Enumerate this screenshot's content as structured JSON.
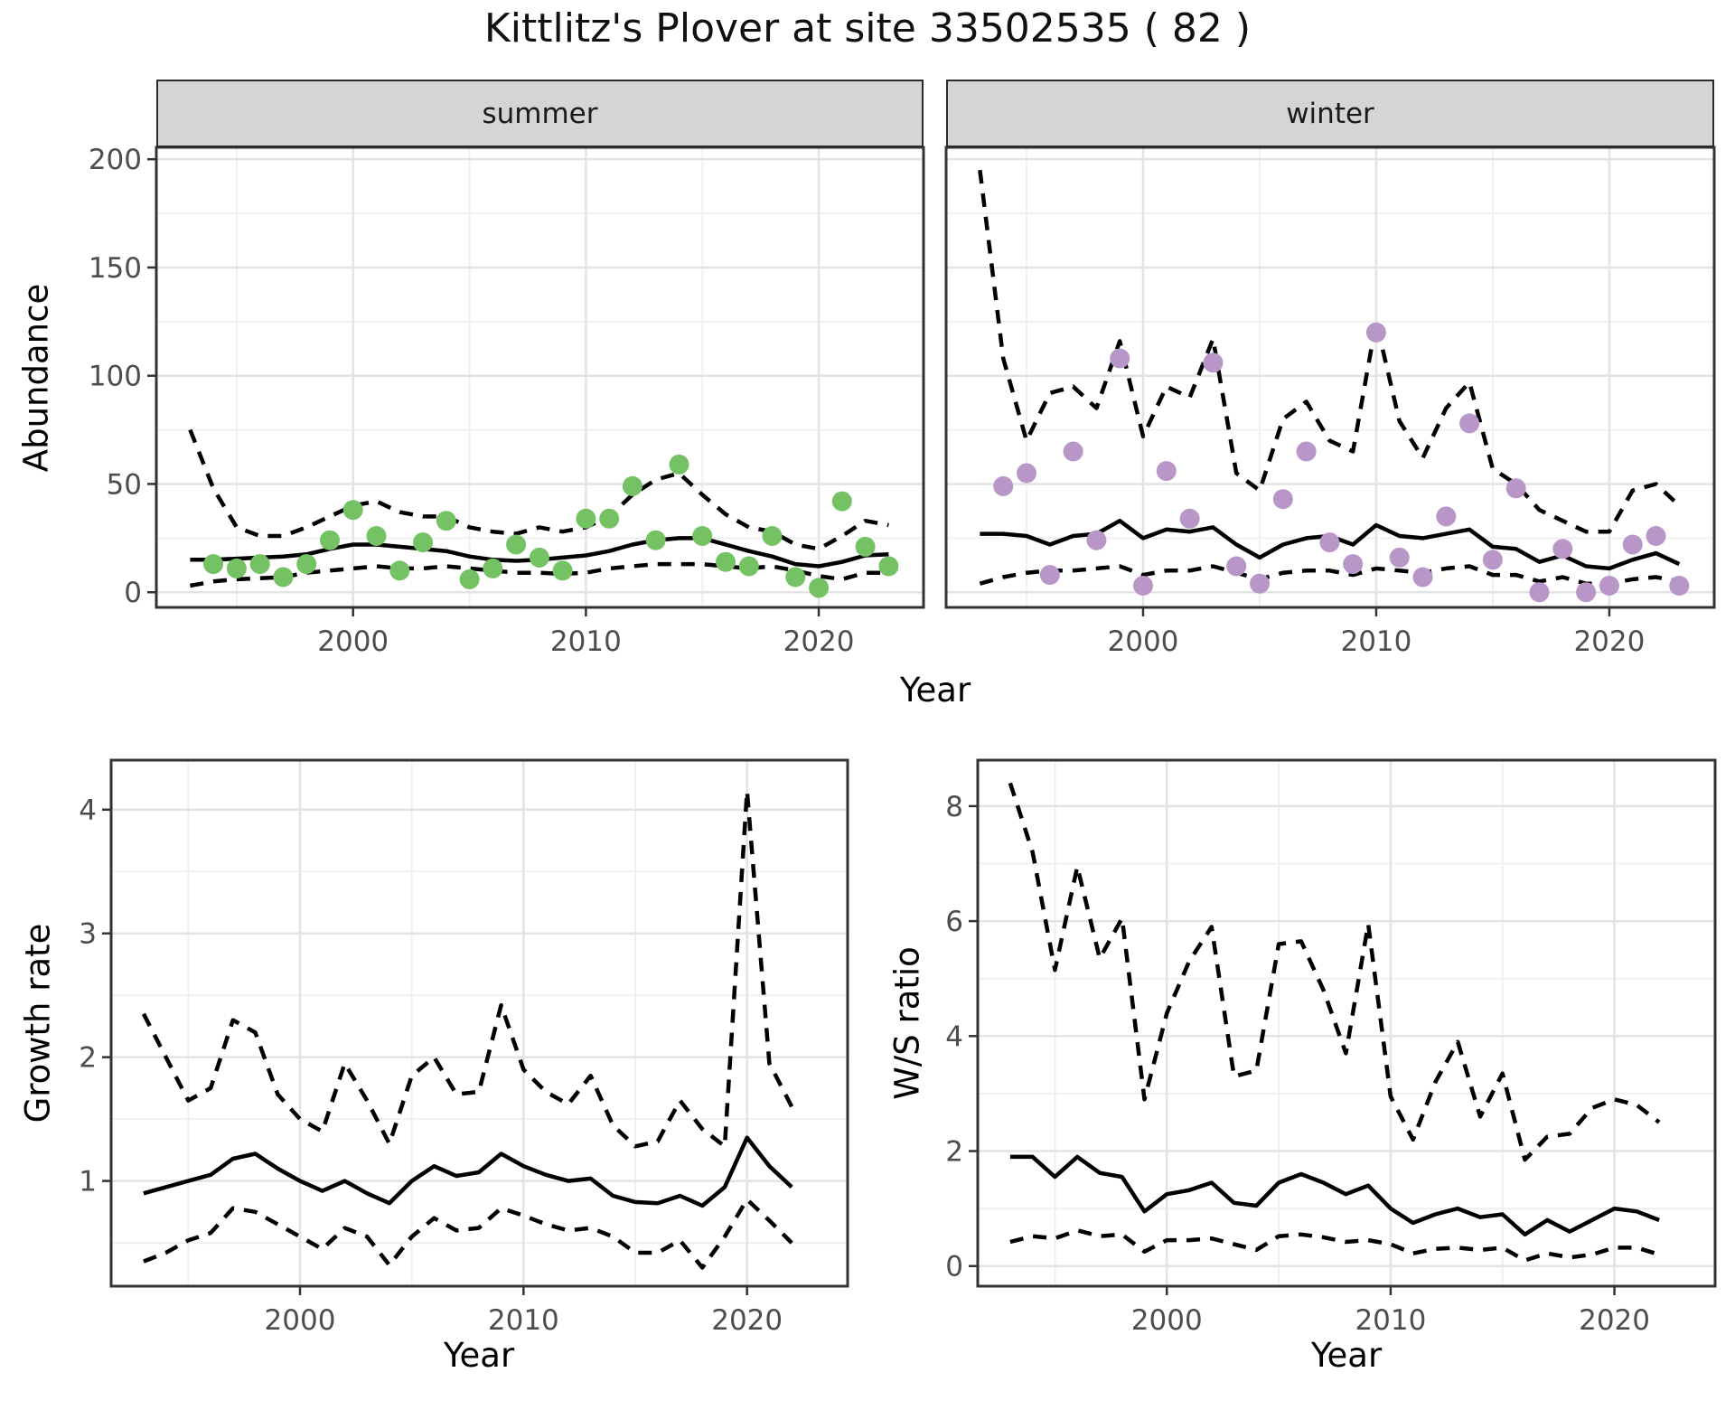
{
  "title": "Kittlitz's Plover at site 33502535 ( 82 )",
  "colors": {
    "summer_point": "#74c264",
    "winter_point": "#b897c8",
    "line": "#000000",
    "strip_bg": "#d5d5d5",
    "panel_border": "#333333",
    "axis_text": "#4d4d4d",
    "grid_major": "#e3e3e3",
    "grid_minor": "#f0f0f0"
  },
  "axis_labels": {
    "abundance": "Abundance",
    "year": "Year",
    "growth": "Growth rate",
    "ws_ratio": "W/S ratio"
  },
  "chart_data": [
    {
      "type": "line+scatter",
      "facet_label": "summer",
      "ylabel": "Abundance",
      "xlabel": "Year",
      "xlim": [
        1991.55,
        2024.5
      ],
      "ylim": [
        -7,
        205.5
      ],
      "xticks": [
        2000,
        2010,
        2020
      ],
      "yticks": [
        0,
        50,
        100,
        150,
        200
      ],
      "xticks_minor": [
        1995,
        2005,
        2015
      ],
      "yticks_minor": [
        25,
        75,
        125,
        175
      ],
      "x": [
        1993,
        1994,
        1995,
        1996,
        1997,
        1998,
        1999,
        2000,
        2001,
        2002,
        2003,
        2004,
        2005,
        2006,
        2007,
        2008,
        2009,
        2010,
        2011,
        2012,
        2013,
        2014,
        2015,
        2016,
        2017,
        2018,
        2019,
        2020,
        2021,
        2022,
        2023
      ],
      "series": [
        {
          "name": "fit",
          "style": "solid",
          "values": [
            15,
            15,
            15.5,
            16,
            16.5,
            17.5,
            20,
            22,
            22,
            21,
            20,
            19,
            16.5,
            15,
            14.5,
            15,
            16,
            17,
            19,
            22,
            24,
            25,
            25,
            22,
            19,
            16.5,
            13,
            12,
            14,
            17,
            17.5
          ]
        },
        {
          "name": "upper_ci",
          "style": "dashed",
          "values": [
            75,
            48,
            30,
            26,
            26,
            30,
            35,
            40,
            42,
            37,
            35,
            35,
            30,
            28,
            27,
            30,
            28,
            30,
            35,
            45,
            52,
            55,
            45,
            36,
            30,
            28,
            22,
            20,
            26,
            33,
            31
          ]
        },
        {
          "name": "lower_ci",
          "style": "dashed",
          "values": [
            3,
            5,
            6,
            6.5,
            7,
            9,
            10,
            11,
            12,
            11,
            11,
            12,
            11,
            10,
            9,
            9,
            8.5,
            9,
            11,
            12,
            13,
            13,
            13,
            12,
            11,
            12,
            10,
            7.5,
            6,
            9,
            9
          ]
        }
      ],
      "points": {
        "color_key": "summer_point",
        "x": [
          1994,
          1995,
          1996,
          1997,
          1998,
          1999,
          2000,
          2001,
          2002,
          2003,
          2004,
          2005,
          2006,
          2007,
          2008,
          2009,
          2010,
          2011,
          2012,
          2013,
          2014,
          2015,
          2016,
          2017,
          2018,
          2019,
          2020,
          2021,
          2022,
          2023
        ],
        "y": [
          13,
          11,
          13,
          7,
          13,
          24,
          38,
          26,
          10,
          23,
          33,
          6,
          11,
          22,
          16,
          10,
          34,
          34,
          49,
          24,
          59,
          26,
          14,
          12,
          26,
          7,
          2,
          42,
          21,
          12
        ]
      }
    },
    {
      "type": "line+scatter",
      "facet_label": "winter",
      "ylabel": "",
      "xlabel": "Year",
      "xlim": [
        1991.55,
        2024.5
      ],
      "ylim": [
        -7,
        205.5
      ],
      "xticks": [
        2000,
        2010,
        2020
      ],
      "yticks": [
        0,
        50,
        100,
        150,
        200
      ],
      "xticks_minor": [
        1995,
        2005,
        2015
      ],
      "yticks_minor": [
        25,
        75,
        125,
        175
      ],
      "x": [
        1993,
        1994,
        1995,
        1996,
        1997,
        1998,
        1999,
        2000,
        2001,
        2002,
        2003,
        2004,
        2005,
        2006,
        2007,
        2008,
        2009,
        2010,
        2011,
        2012,
        2013,
        2014,
        2015,
        2016,
        2017,
        2018,
        2019,
        2020,
        2021,
        2022,
        2023
      ],
      "series": [
        {
          "name": "fit",
          "style": "solid",
          "values": [
            27,
            27,
            26,
            22,
            26,
            27,
            33,
            25,
            29,
            28,
            30,
            22,
            16,
            22,
            25,
            26,
            22,
            31,
            26,
            25,
            27,
            29,
            21,
            20,
            14,
            17,
            12,
            11,
            15,
            18,
            13
          ]
        },
        {
          "name": "upper_ci",
          "style": "dashed",
          "values": [
            195,
            108,
            70,
            92,
            95,
            85,
            116,
            72,
            95,
            90,
            117,
            55,
            47,
            80,
            88,
            70,
            65,
            125,
            79,
            62,
            85,
            97,
            57,
            50,
            38,
            33,
            28,
            28,
            47,
            50,
            40
          ]
        },
        {
          "name": "lower_ci",
          "style": "dashed",
          "values": [
            4,
            7,
            9,
            10,
            10,
            11,
            12,
            8,
            10,
            10,
            12,
            9,
            6,
            9,
            10,
            10,
            8,
            11,
            10,
            9,
            11,
            12,
            8,
            8,
            5,
            7,
            4,
            4,
            6,
            7,
            5
          ]
        }
      ],
      "points": {
        "color_key": "winter_point",
        "x": [
          1994,
          1995,
          1996,
          1997,
          1998,
          1999,
          2000,
          2001,
          2002,
          2003,
          2004,
          2005,
          2006,
          2007,
          2008,
          2009,
          2010,
          2011,
          2012,
          2013,
          2014,
          2015,
          2016,
          2017,
          2018,
          2019,
          2020,
          2021,
          2022,
          2023
        ],
        "y": [
          49,
          55,
          8,
          65,
          24,
          108,
          3,
          56,
          34,
          106,
          12,
          4,
          43,
          65,
          23,
          13,
          120,
          16,
          7,
          35,
          78,
          15,
          48,
          0,
          20,
          0,
          3,
          22,
          26,
          3
        ]
      }
    },
    {
      "type": "line",
      "facet_label": "",
      "ylabel": "Growth rate",
      "xlabel": "Year",
      "xlim": [
        1991.55,
        2024.5
      ],
      "ylim": [
        0.15,
        4.4
      ],
      "xticks": [
        2000,
        2010,
        2020
      ],
      "yticks": [
        1,
        2,
        3,
        4
      ],
      "xticks_minor": [
        1995,
        2005,
        2015
      ],
      "yticks_minor": [
        0.5,
        1.5,
        2.5,
        3.5
      ],
      "x": [
        1993,
        1994,
        1995,
        1996,
        1997,
        1998,
        1999,
        2000,
        2001,
        2002,
        2003,
        2004,
        2005,
        2006,
        2007,
        2008,
        2009,
        2010,
        2011,
        2012,
        2013,
        2014,
        2015,
        2016,
        2017,
        2018,
        2019,
        2020,
        2021,
        2022
      ],
      "series": [
        {
          "name": "fit",
          "style": "solid",
          "values": [
            0.9,
            0.95,
            1.0,
            1.05,
            1.18,
            1.22,
            1.1,
            1.0,
            0.92,
            1.0,
            0.9,
            0.82,
            1.0,
            1.12,
            1.04,
            1.07,
            1.22,
            1.12,
            1.05,
            1.0,
            1.02,
            0.88,
            0.83,
            0.82,
            0.88,
            0.8,
            0.95,
            1.35,
            1.12,
            0.95
          ]
        },
        {
          "name": "upper_ci",
          "style": "dashed",
          "values": [
            2.35,
            2.0,
            1.65,
            1.75,
            2.3,
            2.2,
            1.7,
            1.5,
            1.4,
            1.95,
            1.65,
            1.3,
            1.85,
            2.0,
            1.7,
            1.72,
            2.42,
            1.9,
            1.72,
            1.62,
            1.85,
            1.45,
            1.28,
            1.32,
            1.65,
            1.42,
            1.28,
            4.15,
            1.95,
            1.6
          ]
        },
        {
          "name": "lower_ci",
          "style": "dashed",
          "values": [
            0.35,
            0.42,
            0.52,
            0.58,
            0.78,
            0.75,
            0.65,
            0.55,
            0.45,
            0.62,
            0.55,
            0.32,
            0.55,
            0.7,
            0.6,
            0.62,
            0.78,
            0.72,
            0.65,
            0.6,
            0.62,
            0.55,
            0.42,
            0.42,
            0.52,
            0.3,
            0.55,
            0.85,
            0.68,
            0.5
          ]
        }
      ]
    },
    {
      "type": "line",
      "facet_label": "",
      "ylabel": "W/S ratio",
      "xlabel": "Year",
      "xlim": [
        1991.55,
        2024.5
      ],
      "ylim": [
        -0.35,
        8.8
      ],
      "xticks": [
        2000,
        2010,
        2020
      ],
      "yticks": [
        0,
        2,
        4,
        6,
        8
      ],
      "xticks_minor": [
        1995,
        2005,
        2015
      ],
      "yticks_minor": [
        1,
        3,
        5,
        7
      ],
      "x": [
        1993,
        1994,
        1995,
        1996,
        1997,
        1998,
        1999,
        2000,
        2001,
        2002,
        2003,
        2004,
        2005,
        2006,
        2007,
        2008,
        2009,
        2010,
        2011,
        2012,
        2013,
        2014,
        2015,
        2016,
        2017,
        2018,
        2019,
        2020,
        2021,
        2022
      ],
      "series": [
        {
          "name": "fit",
          "style": "solid",
          "values": [
            1.9,
            1.9,
            1.55,
            1.9,
            1.62,
            1.55,
            0.95,
            1.25,
            1.32,
            1.45,
            1.1,
            1.05,
            1.45,
            1.6,
            1.45,
            1.25,
            1.4,
            1.0,
            0.75,
            0.9,
            1.0,
            0.85,
            0.9,
            0.55,
            0.8,
            0.6,
            0.8,
            1.0,
            0.95,
            0.8
          ]
        },
        {
          "name": "upper_ci",
          "style": "dashed",
          "values": [
            8.4,
            7.2,
            5.15,
            6.95,
            5.35,
            6.05,
            2.9,
            4.4,
            5.3,
            5.9,
            3.3,
            3.4,
            5.6,
            5.65,
            4.8,
            3.7,
            5.95,
            2.95,
            2.2,
            3.2,
            3.9,
            2.6,
            3.35,
            1.85,
            2.25,
            2.3,
            2.75,
            2.9,
            2.8,
            2.5
          ]
        },
        {
          "name": "lower_ci",
          "style": "dashed",
          "values": [
            0.42,
            0.52,
            0.48,
            0.62,
            0.52,
            0.55,
            0.25,
            0.45,
            0.45,
            0.48,
            0.38,
            0.28,
            0.52,
            0.55,
            0.5,
            0.42,
            0.45,
            0.38,
            0.22,
            0.3,
            0.32,
            0.28,
            0.32,
            0.1,
            0.22,
            0.15,
            0.2,
            0.32,
            0.32,
            0.2
          ]
        }
      ]
    }
  ]
}
